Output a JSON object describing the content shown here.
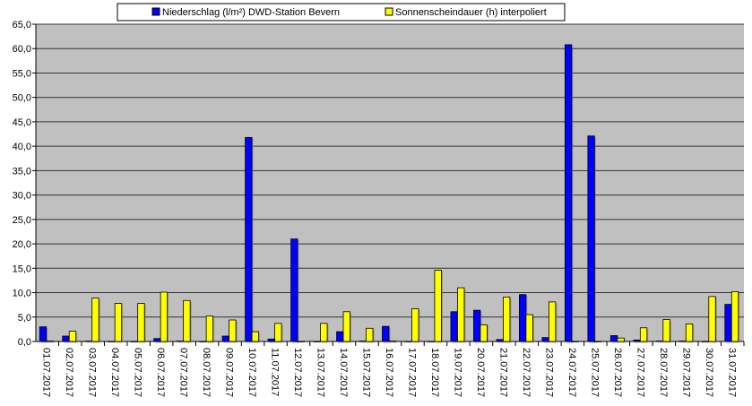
{
  "chart_data": {
    "type": "bar",
    "title": "",
    "xlabel": "",
    "ylabel": "",
    "ylim": [
      0,
      65
    ],
    "yticks": [
      0,
      5,
      10,
      15,
      20,
      25,
      30,
      35,
      40,
      45,
      50,
      55,
      60,
      65
    ],
    "ytick_labels": [
      "0,0",
      "5,0",
      "10,0",
      "15,0",
      "20,0",
      "25,0",
      "30,0",
      "35,0",
      "40,0",
      "45,0",
      "50,0",
      "55,0",
      "60,0",
      "65,0"
    ],
    "grid": true,
    "legend_position": "top",
    "background": "#c0c0c0",
    "categories": [
      "01.07.2017",
      "02.07.2017",
      "03.07.2017",
      "04.07.2017",
      "05.07.2017",
      "06.07.2017",
      "07.07.2017",
      "08.07.2017",
      "09.07.2017",
      "10.07.2017",
      "11.07.2017",
      "12.07.2017",
      "13.07.2017",
      "14.07.2017",
      "15.07.2017",
      "16.07.2017",
      "17.07.2017",
      "18.07.2017",
      "19.07.2017",
      "20.07.2017",
      "21.07.2017",
      "22.07.2017",
      "23.07.2017",
      "24.07.2017",
      "25.07.2017",
      "26.07.2017",
      "27.07.2017",
      "28.07.2017",
      "29.07.2017",
      "30.07.2017",
      "31.07.2017"
    ],
    "series": [
      {
        "name": "Niederschlag (l/m²) DWD-Station Bevern",
        "color": "#0000ff",
        "values": [
          3.0,
          1.1,
          0.1,
          0,
          0,
          0.6,
          0.1,
          0,
          1.1,
          41.8,
          0.5,
          21.0,
          0,
          2.0,
          0.1,
          3.1,
          0,
          0,
          6.1,
          6.4,
          0.4,
          9.6,
          0.8,
          60.8,
          42.1,
          1.2,
          0.3,
          0.1,
          0.1,
          0,
          7.6
        ]
      },
      {
        "name": "Sonnenscheindauer (h) interpoliert",
        "color": "#ffff00",
        "values": [
          0.1,
          2.1,
          8.9,
          7.8,
          7.8,
          10.1,
          8.4,
          5.2,
          4.4,
          2.0,
          3.7,
          0,
          3.7,
          6.1,
          2.7,
          0.1,
          6.7,
          14.6,
          11.0,
          3.4,
          9.1,
          5.5,
          8.1,
          0,
          0,
          0.7,
          2.8,
          4.5,
          3.6,
          9.2,
          10.2
        ]
      }
    ]
  }
}
